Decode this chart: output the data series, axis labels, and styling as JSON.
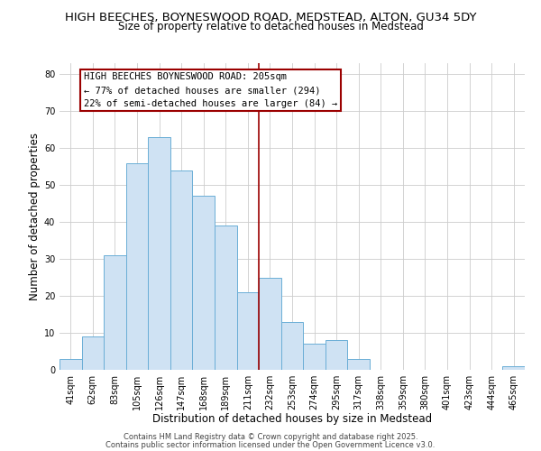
{
  "title": "HIGH BEECHES, BOYNESWOOD ROAD, MEDSTEAD, ALTON, GU34 5DY",
  "subtitle": "Size of property relative to detached houses in Medstead",
  "xlabel": "Distribution of detached houses by size in Medstead",
  "ylabel": "Number of detached properties",
  "bar_labels": [
    "41sqm",
    "62sqm",
    "83sqm",
    "105sqm",
    "126sqm",
    "147sqm",
    "168sqm",
    "189sqm",
    "211sqm",
    "232sqm",
    "253sqm",
    "274sqm",
    "295sqm",
    "317sqm",
    "338sqm",
    "359sqm",
    "380sqm",
    "401sqm",
    "423sqm",
    "444sqm",
    "465sqm"
  ],
  "bar_values": [
    3,
    9,
    31,
    56,
    63,
    54,
    47,
    39,
    21,
    25,
    13,
    7,
    8,
    3,
    0,
    0,
    0,
    0,
    0,
    0,
    1
  ],
  "bar_color": "#cfe2f3",
  "bar_edge_color": "#6baed6",
  "vline_color": "#9b0000",
  "annotation_box_text_line1": "HIGH BEECHES BOYNESWOOD ROAD: 205sqm",
  "annotation_box_text_line2": "← 77% of detached houses are smaller (294)",
  "annotation_box_text_line3": "22% of semi-detached houses are larger (84) →",
  "ylim": [
    0,
    83
  ],
  "yticks": [
    0,
    10,
    20,
    30,
    40,
    50,
    60,
    70,
    80
  ],
  "footer_line1": "Contains HM Land Registry data © Crown copyright and database right 2025.",
  "footer_line2": "Contains public sector information licensed under the Open Government Licence v3.0.",
  "background_color": "#ffffff",
  "plot_background_color": "#ffffff",
  "grid_color": "#cccccc",
  "title_fontsize": 9.5,
  "subtitle_fontsize": 8.5,
  "axis_label_fontsize": 8.5,
  "tick_fontsize": 7,
  "footer_fontsize": 6,
  "annotation_fontsize": 7.5
}
